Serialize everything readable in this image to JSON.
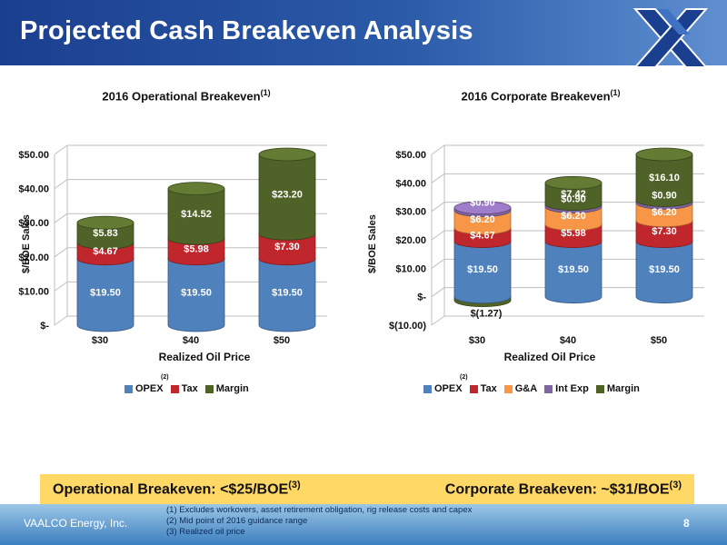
{
  "header": {
    "title": "Projected Cash Breakeven Analysis"
  },
  "logo": {
    "icon": "company-logo-icon"
  },
  "chart_data": [
    {
      "type": "bar",
      "title": "2016 Operational Breakeven",
      "title_footnote": "(1)",
      "xlabel": "Realized Oil Price",
      "ylabel": "$/BOE Sales",
      "categories": [
        "$30",
        "$40",
        "$50"
      ],
      "ylim": [
        0,
        50
      ],
      "yticks": [
        0,
        10,
        20,
        30,
        40,
        50
      ],
      "ytick_labels": [
        "$-",
        "$10.00",
        "$20.00",
        "$30.00",
        "$40.00",
        "$50.00"
      ],
      "stacked": true,
      "series": [
        {
          "name": "OPEX",
          "values": [
            19.5,
            19.5,
            19.5
          ],
          "labels": [
            "$19.50",
            "$19.50",
            "$19.50"
          ],
          "color": "#4f81bd",
          "footnote": "(2)"
        },
        {
          "name": "Tax",
          "values": [
            4.67,
            5.98,
            7.3
          ],
          "labels": [
            "$4.67",
            "$5.98",
            "$7.30"
          ],
          "color": "#c0272d"
        },
        {
          "name": "Margin",
          "values": [
            5.83,
            14.52,
            23.2
          ],
          "labels": [
            "$5.83",
            "$14.52",
            "$23.20"
          ],
          "color": "#4f6228"
        }
      ]
    },
    {
      "type": "bar",
      "title": "2016 Corporate Breakeven",
      "title_footnote": "(1)",
      "xlabel": "Realized Oil Price",
      "ylabel": "$/BOE Sales",
      "categories": [
        "$30",
        "$40",
        "$50"
      ],
      "ylim": [
        -10,
        50
      ],
      "yticks": [
        -10,
        0,
        10,
        20,
        30,
        40,
        50
      ],
      "ytick_labels": [
        "$(10.00)",
        "$-",
        "$10.00",
        "$20.00",
        "$30.00",
        "$40.00",
        "$50.00"
      ],
      "stacked": true,
      "series": [
        {
          "name": "OPEX",
          "values": [
            19.5,
            19.5,
            19.5
          ],
          "labels": [
            "$19.50",
            "$19.50",
            "$19.50"
          ],
          "color": "#4f81bd",
          "footnote": "(2)"
        },
        {
          "name": "Tax",
          "values": [
            4.67,
            5.98,
            7.3
          ],
          "labels": [
            "$4.67",
            "$5.98",
            "$7.30"
          ],
          "color": "#c0272d"
        },
        {
          "name": "G&A",
          "values": [
            6.2,
            6.2,
            6.2
          ],
          "labels": [
            "$6.20",
            "$6.20",
            "$6.20"
          ],
          "color": "#f79646"
        },
        {
          "name": "Int Exp",
          "values": [
            0.9,
            0.9,
            0.9
          ],
          "labels": [
            "$0.90",
            "$0.90",
            "$0.90"
          ],
          "color": "#8064a2"
        },
        {
          "name": "Margin",
          "values": [
            -1.27,
            7.42,
            16.1
          ],
          "labels": [
            "$(1.27)",
            "$7.42",
            "$16.10"
          ],
          "color": "#4f6228"
        }
      ]
    }
  ],
  "callout": {
    "left_text": "Operational Breakeven: <$25/BOE",
    "left_note": "(3)",
    "right_text": "Corporate Breakeven: ~$31/BOE",
    "right_note": "(3)"
  },
  "footer": {
    "company": "VAALCO Energy, Inc.",
    "page": "8",
    "notes": [
      "(1)    Excludes workovers, asset retirement obligation, rig release costs and capex",
      "(2)    Mid point of 2016 guidance range",
      "(3)    Realized oil price"
    ]
  }
}
